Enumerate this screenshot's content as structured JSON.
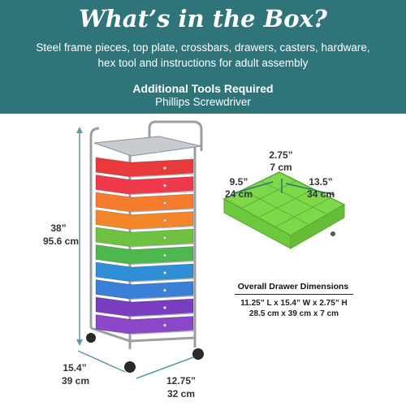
{
  "banner": {
    "title": "What’s in the Box?",
    "description": "Steel frame pieces, top plate, crossbars, drawers, casters, hardware, hex tool and instructions for adult assembly",
    "additional_title": "Additional Tools Required",
    "additional_item": "Phillips Screwdriver",
    "color": "#2f7479"
  },
  "cart": {
    "height_in": "38”",
    "height_cm": "95.6 cm",
    "depth_in": "15.4”",
    "depth_cm": "39 cm",
    "width_in": "12.75”",
    "width_cm": "32 cm",
    "drawer_colors": [
      "#e83a3a",
      "#ee3a4c",
      "#f47c2c",
      "#f4862a",
      "#6fc23f",
      "#4cb84e",
      "#2f8fd6",
      "#3a7fd8",
      "#7a3dc0",
      "#8a48c8"
    ]
  },
  "drawer": {
    "depth_in": "2.75”",
    "depth_cm": "7 cm",
    "length_in": "9.5”",
    "length_cm": "24 cm",
    "width_in": "13.5”",
    "width_cm": "34 cm",
    "color": "#7fd84a"
  },
  "dimensions": {
    "title": "Overall Drawer Dimensions",
    "imperial": "11.25” L x 15.4” W x 2.75” H",
    "metric": "28.5 cm x 39 cm x 7 cm"
  }
}
